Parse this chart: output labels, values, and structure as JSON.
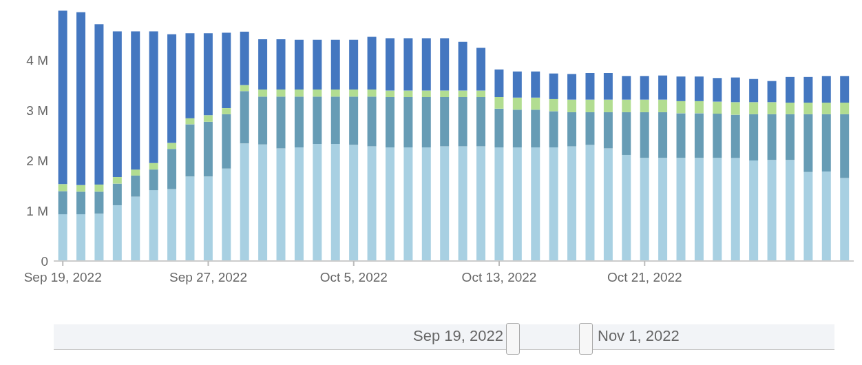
{
  "chart_data": {
    "type": "bar",
    "stacked": true,
    "categories": [
      "Sep 19, 2022",
      null,
      null,
      null,
      null,
      null,
      null,
      null,
      "Sep 27, 2022",
      null,
      null,
      null,
      null,
      null,
      null,
      null,
      "Oct 5, 2022",
      null,
      null,
      null,
      null,
      null,
      null,
      null,
      "Oct 13, 2022",
      null,
      null,
      null,
      null,
      null,
      null,
      null,
      "Oct 21, 2022",
      null,
      null,
      null,
      null,
      null,
      null,
      null,
      null,
      null,
      null,
      null
    ],
    "ylim": [
      0,
      5000000
    ],
    "yticks": [
      {
        "value": 0,
        "label": "0"
      },
      {
        "value": 1000000,
        "label": "1 M"
      },
      {
        "value": 2000000,
        "label": "2 M"
      },
      {
        "value": 3000000,
        "label": "3 M"
      },
      {
        "value": 4000000,
        "label": "4 M"
      }
    ],
    "series": [
      {
        "color": "#a8d0e2",
        "values": [
          930000,
          930000,
          940000,
          1110000,
          1280000,
          1410000,
          1430000,
          1680000,
          1680000,
          1840000,
          2340000,
          2320000,
          2240000,
          2260000,
          2330000,
          2330000,
          2310000,
          2280000,
          2260000,
          2260000,
          2260000,
          2280000,
          2280000,
          2280000,
          2260000,
          2260000,
          2260000,
          2260000,
          2280000,
          2310000,
          2240000,
          2110000,
          2050000,
          2050000,
          2050000,
          2050000,
          2050000,
          2050000,
          2000000,
          2010000,
          2010000,
          1770000,
          1780000,
          1650000
        ]
      },
      {
        "color": "#679cb5",
        "values": [
          460000,
          450000,
          440000,
          430000,
          420000,
          410000,
          800000,
          1040000,
          1090000,
          1080000,
          1040000,
          950000,
          1030000,
          1010000,
          940000,
          940000,
          960000,
          990000,
          1000000,
          1000000,
          1000000,
          980000,
          980000,
          980000,
          770000,
          750000,
          750000,
          720000,
          680000,
          650000,
          720000,
          850000,
          910000,
          910000,
          890000,
          890000,
          880000,
          860000,
          920000,
          910000,
          910000,
          1150000,
          1140000,
          1270000
        ]
      },
      {
        "color": "#b2dd91",
        "values": [
          140000,
          130000,
          140000,
          130000,
          120000,
          130000,
          120000,
          120000,
          130000,
          120000,
          120000,
          140000,
          140000,
          140000,
          140000,
          140000,
          140000,
          140000,
          130000,
          130000,
          130000,
          130000,
          130000,
          130000,
          230000,
          240000,
          240000,
          240000,
          250000,
          250000,
          250000,
          250000,
          250000,
          250000,
          240000,
          240000,
          240000,
          250000,
          240000,
          240000,
          230000,
          230000,
          230000,
          230000
        ]
      },
      {
        "color": "#4477c0",
        "values": [
          3450000,
          3440000,
          3190000,
          2900000,
          2750000,
          2620000,
          2160000,
          1690000,
          1630000,
          1500000,
          1060000,
          1000000,
          1000000,
          990000,
          990000,
          990000,
          990000,
          1050000,
          1040000,
          1040000,
          1040000,
          1040000,
          970000,
          850000,
          550000,
          520000,
          520000,
          510000,
          510000,
          530000,
          530000,
          470000,
          470000,
          480000,
          490000,
          490000,
          470000,
          490000,
          460000,
          420000,
          510000,
          510000,
          530000,
          530000
        ]
      }
    ],
    "annotations": [
      "Sep 19, 2022",
      "Nov 1, 2022"
    ]
  }
}
